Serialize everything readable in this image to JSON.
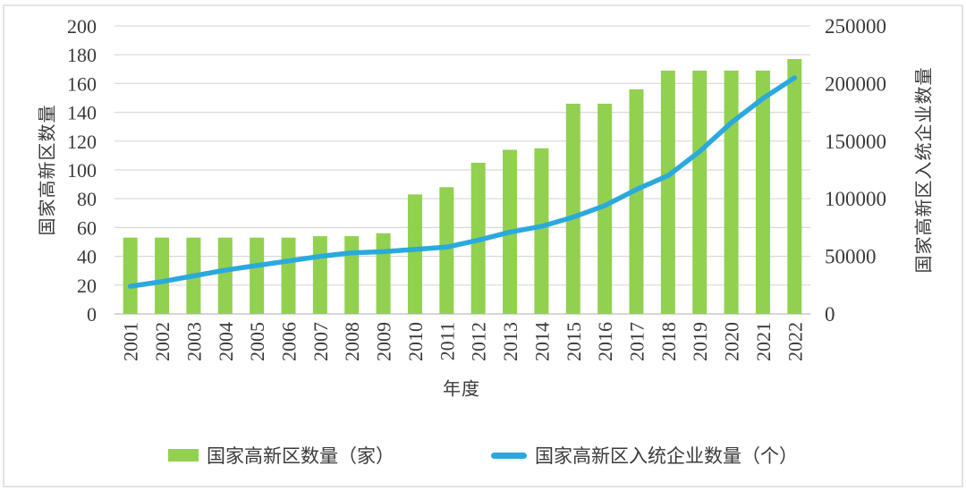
{
  "chart_data": {
    "type": "combo-bar-line",
    "title": "",
    "categories": [
      "2001",
      "2002",
      "2003",
      "2004",
      "2005",
      "2006",
      "2007",
      "2008",
      "2009",
      "2010",
      "2011",
      "2012",
      "2013",
      "2014",
      "2015",
      "2016",
      "2017",
      "2018",
      "2019",
      "2020",
      "2021",
      "2022"
    ],
    "series": [
      {
        "name": "国家高新区数量（家）",
        "type": "bar",
        "axis": "left",
        "color": "#92d050",
        "values": [
          53,
          53,
          53,
          53,
          53,
          53,
          54,
          54,
          56,
          83,
          88,
          105,
          114,
          115,
          146,
          146,
          156,
          169,
          169,
          169,
          169,
          177
        ]
      },
      {
        "name": "国家高新区入统企业数量（个）",
        "type": "line",
        "axis": "right",
        "color": "#2ba9dc",
        "values": [
          24000,
          28000,
          33000,
          38000,
          42000,
          46000,
          50000,
          53000,
          54000,
          56000,
          58000,
          64000,
          71000,
          76000,
          84000,
          94000,
          108000,
          120000,
          141000,
          166000,
          187000,
          205000
        ]
      }
    ],
    "axes": {
      "left": {
        "title": "国家高新区数量",
        "min": 0,
        "max": 200,
        "step": 20
      },
      "right": {
        "title": "国家高新区入统企业数量",
        "min": 0,
        "max": 250000,
        "step": 50000
      },
      "x": {
        "title": "年度"
      }
    },
    "grid": true,
    "legend_position": "bottom",
    "colors": {
      "grid": "#d9d9d9",
      "axis_line": "#c9c9c9",
      "text": "#3a3a3a",
      "background": "#ffffff",
      "frame_border": "#e3e3e6"
    }
  }
}
